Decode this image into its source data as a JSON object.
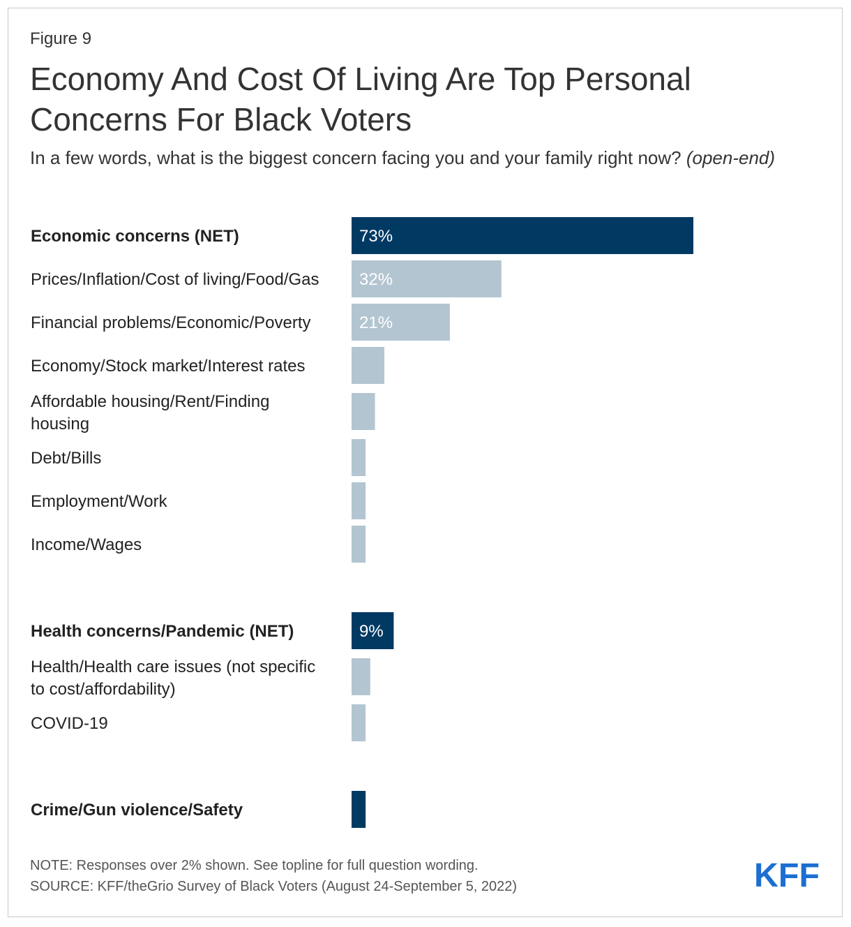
{
  "figure_label": "Figure 9",
  "title": "Economy And Cost Of Living Are Top Personal Concerns For Black Voters",
  "subtitle": "In a few words, what is the biggest concern facing you and your family right now?",
  "subtitle_italic": "(open-end)",
  "note": "NOTE: Responses over 2% shown. See topline for full question wording.",
  "source": "SOURCE: KFF/theGrio Survey of Black Voters (August 24-September 5, 2022)",
  "logo_text": "KFF",
  "colors": {
    "net": "#003a63",
    "sub": "#b3c5d1",
    "label_on_bar": "#ffffff",
    "text": "#222222",
    "logo": "#1c6fd1"
  },
  "chart_data": {
    "type": "bar",
    "orientation": "horizontal",
    "title": "Economy And Cost Of Living Are Top Personal Concerns For Black Voters",
    "xlim": [
      0,
      73
    ],
    "unit": "%",
    "categories": [
      "Economic concerns (NET)",
      "Prices/Inflation/Cost of living/Food/Gas",
      "Financial problems/Economic/Poverty",
      "Economy/Stock market/Interest rates",
      "Affordable housing/Rent/Finding housing",
      "Debt/Bills",
      "Employment/Work",
      "Income/Wages",
      "Health concerns/Pandemic (NET)",
      "Health/Health care issues (not specific to cost/affordability)",
      "COVID-19",
      "Crime/Gun violence/Safety"
    ],
    "values": [
      73,
      32,
      21,
      7,
      5,
      3,
      3,
      3,
      9,
      4,
      3,
      3
    ],
    "value_labels": [
      "73%",
      "32%",
      "21%",
      "",
      "",
      "",
      "",
      "",
      "9%",
      "",
      "",
      ""
    ],
    "is_net": [
      true,
      false,
      false,
      false,
      false,
      false,
      false,
      false,
      true,
      false,
      false,
      true
    ],
    "groups": [
      [
        0,
        7
      ],
      [
        8,
        10
      ],
      [
        11,
        11
      ]
    ]
  }
}
